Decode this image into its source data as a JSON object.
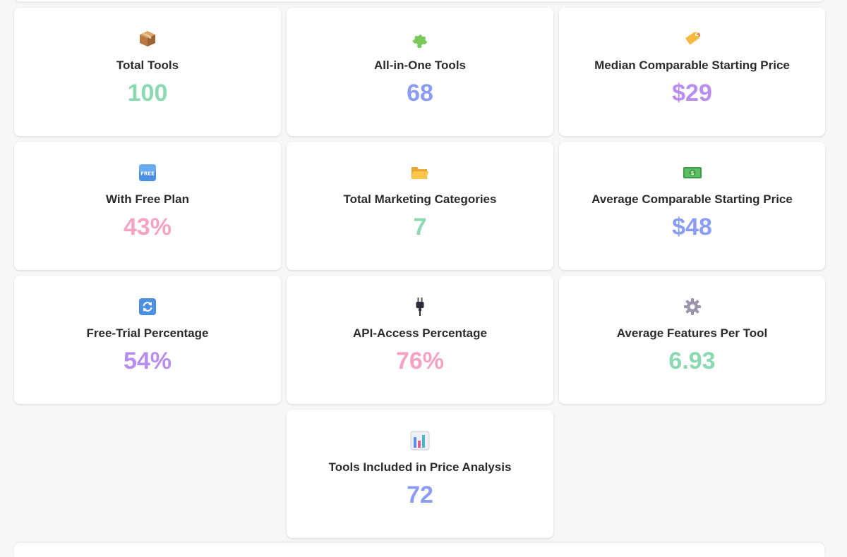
{
  "colors": {
    "green": "#8ad9b1",
    "blue": "#8b9cf4",
    "purple": "#b98cf0",
    "pink": "#f5a3c4"
  },
  "stats": [
    {
      "icon": "package-icon",
      "label": "Total Tools",
      "value": "100",
      "color": "#8ad9b1"
    },
    {
      "icon": "puzzle-icon",
      "label": "All-in-One Tools",
      "value": "68",
      "color": "#8b9cf4"
    },
    {
      "icon": "price-tag-icon",
      "label": "Median Comparable Starting Price",
      "value": "$29",
      "color": "#b98cf0"
    },
    {
      "icon": "free-badge-icon",
      "label": "With Free Plan",
      "value": "43%",
      "color": "#f5a3c4"
    },
    {
      "icon": "folder-icon",
      "label": "Total Marketing Categories",
      "value": "7",
      "color": "#8ad9b1"
    },
    {
      "icon": "money-icon",
      "label": "Average Comparable Starting Price",
      "value": "$48",
      "color": "#8b9cf4"
    },
    {
      "icon": "refresh-icon",
      "label": "Free-Trial Percentage",
      "value": "54%",
      "color": "#b98cf0"
    },
    {
      "icon": "plug-icon",
      "label": "API-Access Percentage",
      "value": "76%",
      "color": "#f5a3c4"
    },
    {
      "icon": "gear-icon",
      "label": "Average Features Per Tool",
      "value": "6.93",
      "color": "#8ad9b1"
    },
    {
      "icon": "bar-chart-icon",
      "label": "Tools Included in Price Analysis",
      "value": "72",
      "color": "#8b9cf4"
    }
  ]
}
